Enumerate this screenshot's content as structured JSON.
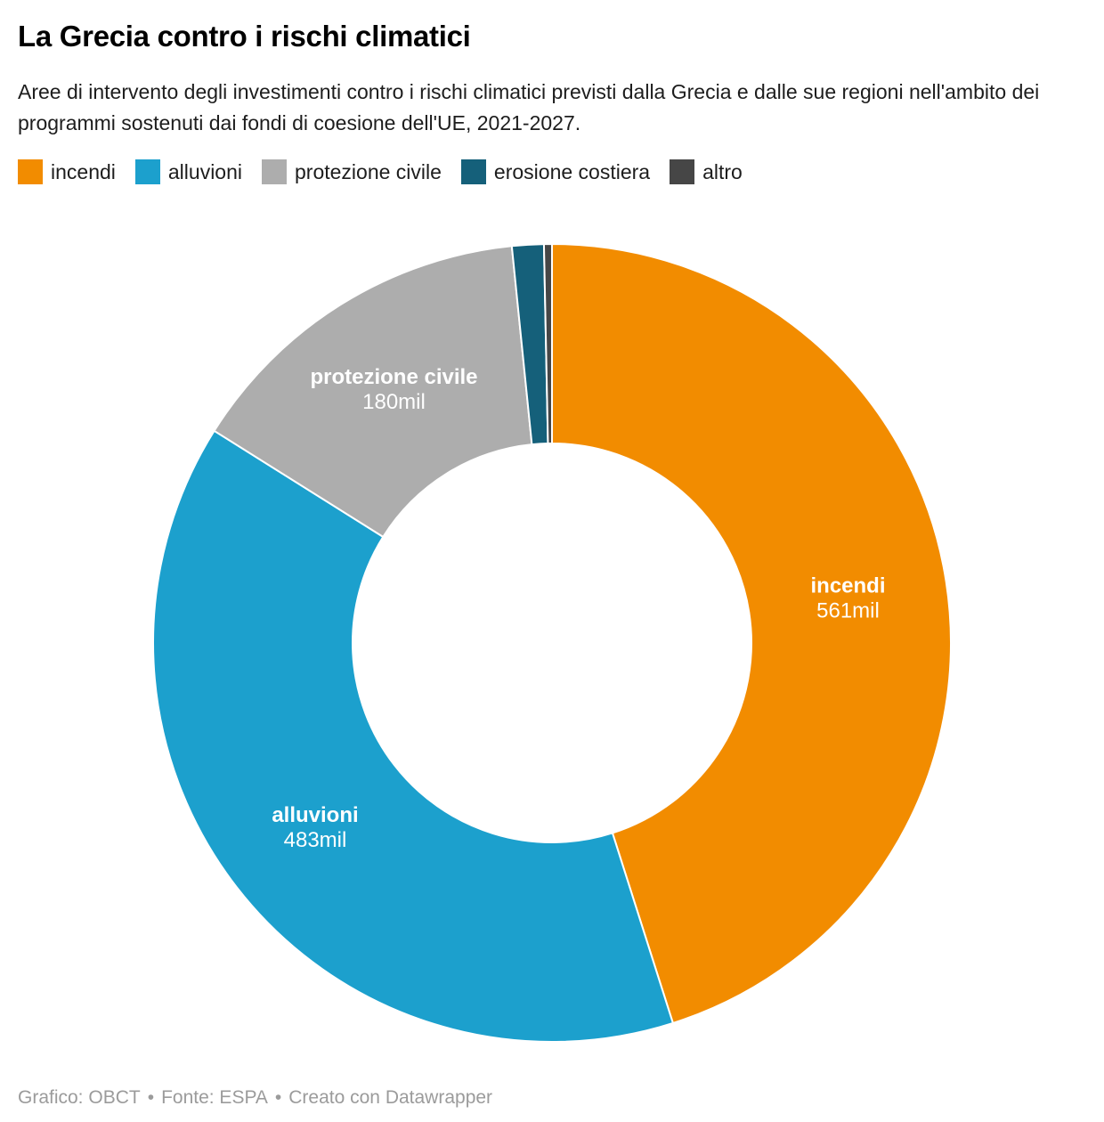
{
  "header": {
    "title": "La Grecia contro i rischi climatici",
    "subtitle": "Aree di intervento degli investimenti contro i rischi climatici previsti dalla Grecia e dalle sue regioni nell'ambito dei programmi sostenuti dai fondi di coesione dell'UE, 2021-2027."
  },
  "legend": {
    "items": [
      {
        "label": "incendi",
        "color": "#F28C00"
      },
      {
        "label": "alluvioni",
        "color": "#1CA0CD"
      },
      {
        "label": "protezione civile",
        "color": "#ADADAD"
      },
      {
        "label": "erosione costiera",
        "color": "#15607A"
      },
      {
        "label": "altro",
        "color": "#464646"
      }
    ]
  },
  "chart_data": {
    "type": "pie",
    "variant": "donut",
    "title": "La Grecia contro i rischi climatici",
    "unit": "mil",
    "start_angle_deg": 0,
    "direction": "clockwise",
    "inner_radius_ratio": 0.5,
    "legend_position": "top",
    "slices": [
      {
        "label": "incendi",
        "value": 561,
        "value_label": "561mil",
        "color": "#F28C00",
        "labeled": true
      },
      {
        "label": "alluvioni",
        "value": 483,
        "value_label": "483mil",
        "color": "#1CA0CD",
        "labeled": true
      },
      {
        "label": "protezione civile",
        "value": 180,
        "value_label": "180mil",
        "color": "#ADADAD",
        "labeled": true
      },
      {
        "label": "erosione costiera",
        "value": 16,
        "value_label": "",
        "color": "#15607A",
        "labeled": false
      },
      {
        "label": "altro",
        "value": 4,
        "value_label": "",
        "color": "#464646",
        "labeled": false
      }
    ]
  },
  "footer": {
    "credit": "Grafico: OBCT",
    "source": "Fonte: ESPA",
    "tool": "Creato con Datawrapper",
    "separator": "•"
  }
}
